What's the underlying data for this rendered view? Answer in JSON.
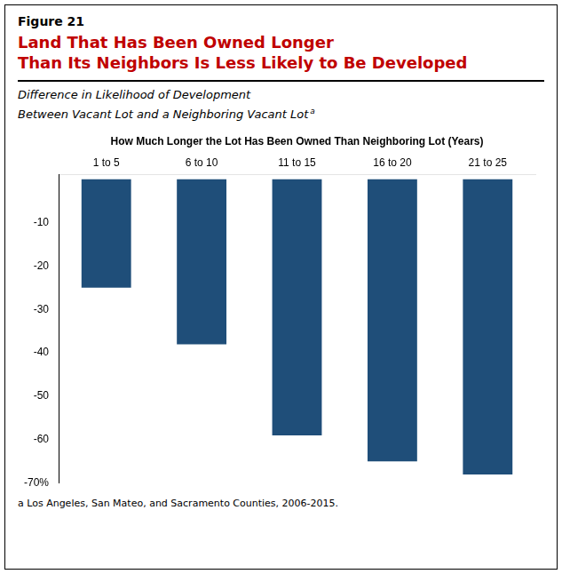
{
  "chart_data": {
    "type": "bar",
    "title": [
      "Land That Has Been Owned Longer",
      "Than Its Neighbors Is Less Likely to Be Developed"
    ],
    "subtitle": [
      "Difference in Likelihood of Development",
      "Between Vacant Lot and a Neighboring Vacant Lot"
    ],
    "xlabel": "How Much Longer the Lot Has Been Owned Than Neighboring Lot (Years)",
    "annotations": [
      "Figure 21",
      "a",
      "a Los Angeles, San Mateo, and Sacramento Counties, 2006-2015."
    ],
    "categories": [
      "1 to 5",
      "6 to 10",
      "11 to 15",
      "16 to 20",
      "21 to 25"
    ],
    "values": [
      -25,
      -38,
      -59,
      -65,
      -68
    ],
    "color": "#1F4E79",
    "ylim": [
      -70,
      1
    ],
    "yticks": [
      {
        "value": 0,
        "label": ""
      },
      -10,
      -20,
      -30,
      -40,
      -50,
      -60,
      {
        "value": -70,
        "label": "-70%"
      }
    ],
    "grid": false
  }
}
